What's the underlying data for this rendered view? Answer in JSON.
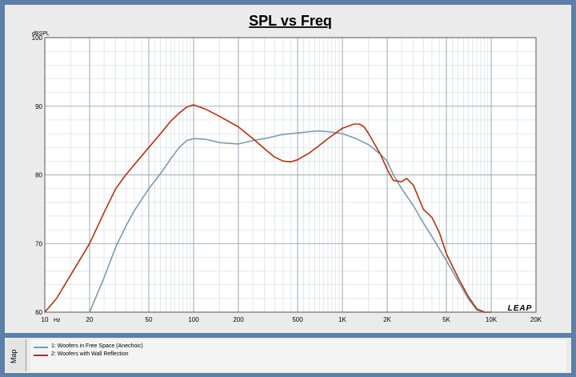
{
  "chart_data": {
    "type": "line",
    "title": "SPL vs Freq",
    "ylabel": "dBSPL",
    "xlabel": "Hz",
    "x_scale": "log",
    "xlim": [
      10,
      20000
    ],
    "ylim": [
      60,
      100
    ],
    "grid": true,
    "legend_position": "bottom",
    "y_ticks": [
      60,
      70,
      80,
      90,
      100
    ],
    "y_tick_labels": [
      "60",
      "70",
      "80",
      "90",
      "100"
    ],
    "x_ticks": [
      10,
      20,
      50,
      100,
      200,
      500,
      1000,
      2000,
      5000,
      10000,
      20000
    ],
    "x_tick_labels": [
      "10",
      "20",
      "50",
      "100",
      "200",
      "500",
      "1K",
      "2K",
      "5K",
      "10K",
      "20K"
    ],
    "series": [
      {
        "name": "1: Woofers in Free Space (Anechoic)",
        "color": "#7a9ab0",
        "x": [
          20,
          25,
          30,
          35,
          40,
          50,
          60,
          70,
          80,
          90,
          100,
          120,
          150,
          200,
          250,
          300,
          400,
          500,
          600,
          700,
          800,
          1000,
          1200,
          1500,
          1800,
          2000,
          2200,
          2500,
          3000,
          3500,
          4000,
          5000,
          6000,
          7000,
          8000,
          9000
        ],
        "y": [
          60,
          65,
          69.5,
          72.5,
          74.8,
          78,
          80.2,
          82.3,
          84,
          85,
          85.3,
          85.2,
          84.7,
          84.5,
          85,
          85.3,
          85.9,
          86.1,
          86.3,
          86.4,
          86.3,
          86,
          85.4,
          84.4,
          83,
          82,
          80,
          78,
          75.5,
          73,
          71,
          67.5,
          64.5,
          62,
          60.3,
          60
        ]
      },
      {
        "name": "2: Woofers with Wall Reflection",
        "color": "#b8300e",
        "x": [
          10,
          12,
          15,
          20,
          25,
          30,
          35,
          40,
          50,
          60,
          70,
          80,
          90,
          100,
          120,
          150,
          200,
          250,
          300,
          350,
          400,
          450,
          500,
          600,
          700,
          800,
          1000,
          1200,
          1300,
          1400,
          1500,
          1800,
          2000,
          2200,
          2500,
          2700,
          3000,
          3500,
          4000,
          4500,
          5000,
          6000,
          7000,
          8000,
          9000,
          10000
        ],
        "y": [
          60,
          62,
          65.5,
          70,
          74.5,
          78,
          80,
          81.5,
          84,
          86,
          87.8,
          89,
          89.9,
          90.2,
          89.6,
          88.5,
          87,
          85.3,
          83.8,
          82.6,
          82,
          81.9,
          82.2,
          83.2,
          84.3,
          85.3,
          86.8,
          87.4,
          87.4,
          87,
          86,
          83,
          80.8,
          79.2,
          79,
          79.5,
          78.5,
          75,
          73.8,
          71.5,
          68.5,
          65,
          62.3,
          60.5,
          60,
          60
        ]
      }
    ]
  },
  "branding": {
    "logo_text": "LEAP"
  },
  "legend_panel": {
    "tab_label": "Map"
  }
}
